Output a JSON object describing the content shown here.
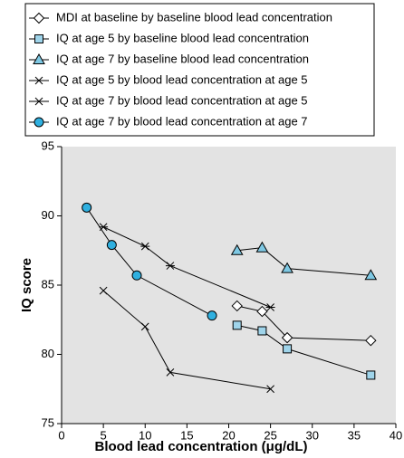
{
  "chart_data": {
    "type": "line",
    "xlabel": "Blood lead concentration (μg/dL)",
    "ylabel": "IQ score",
    "xlim": [
      0,
      40
    ],
    "xticks": [
      0,
      5,
      10,
      15,
      20,
      25,
      30,
      35,
      40
    ],
    "ylim": [
      75,
      95
    ],
    "yticks": [
      75,
      80,
      85,
      90,
      95
    ],
    "legend": "top",
    "series": [
      {
        "name": "MDI at baseline by baseline blood lead concentration",
        "marker": "diamond",
        "color": "#ffffff",
        "x": [
          21,
          24,
          27,
          37
        ],
        "values": [
          83.5,
          83.1,
          81.2,
          81.0
        ]
      },
      {
        "name": "IQ at age 5 by baseline blood lead concentration",
        "marker": "square",
        "color": "#9fd4ea",
        "x": [
          21,
          24,
          27,
          37
        ],
        "values": [
          82.1,
          81.7,
          80.4,
          78.5
        ]
      },
      {
        "name": "IQ at age 7 by baseline blood lead concentration",
        "marker": "triangle",
        "color": "#7ec8e3",
        "x": [
          21,
          24,
          27,
          37
        ],
        "values": [
          87.5,
          87.7,
          86.2,
          85.7
        ]
      },
      {
        "name": "IQ at age 5 by blood lead concentration at age 5",
        "marker": "x",
        "color": "#000000",
        "x": [
          5,
          10,
          13,
          25
        ],
        "values": [
          84.6,
          82.0,
          78.7,
          77.5
        ]
      },
      {
        "name": "IQ at age 7 by blood lead concentration at age 5",
        "marker": "star",
        "color": "#000000",
        "x": [
          5,
          10,
          13,
          25
        ],
        "values": [
          89.2,
          87.8,
          86.4,
          83.4
        ]
      },
      {
        "name": "IQ at age 7 by blood lead concentration at age 7",
        "marker": "circle",
        "color": "#2fb0e0",
        "x": [
          3,
          6,
          9,
          18
        ],
        "values": [
          90.6,
          87.9,
          85.7,
          82.8
        ]
      }
    ]
  }
}
